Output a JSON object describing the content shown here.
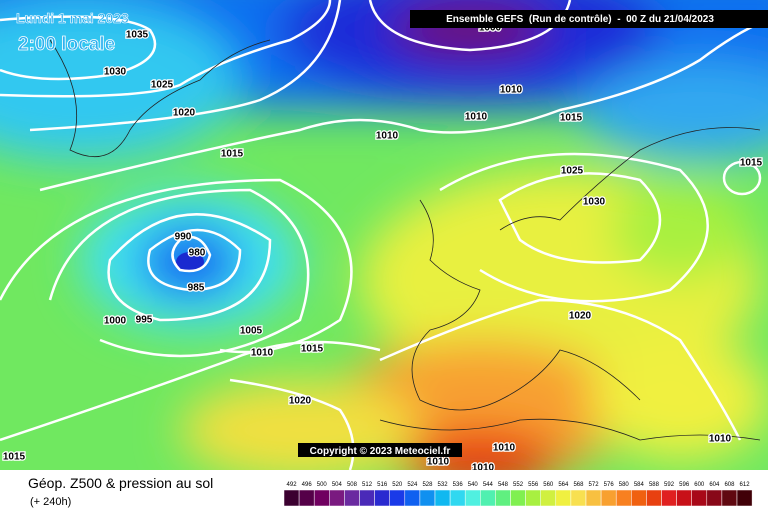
{
  "header": {
    "date": "Lundi 1 mai 2023",
    "time": "2:00 locale",
    "run": "Ensemble GEFS  (Run de contrôle)  -  00 Z du 21/04/2023"
  },
  "copyright": "Copyright © 2023 Meteociel.fr",
  "footer": {
    "title": "Géop. Z500 & pression au sol",
    "lead": "(+ 240h)"
  },
  "colorbar": {
    "values": [
      492,
      496,
      500,
      504,
      508,
      512,
      516,
      520,
      524,
      528,
      532,
      536,
      540,
      544,
      548,
      552,
      556,
      560,
      564,
      568,
      572,
      576,
      580,
      584,
      588,
      592,
      596,
      600,
      604,
      608,
      612
    ],
    "colors": [
      "#3b0030",
      "#550048",
      "#700060",
      "#7a1a80",
      "#6a2aa0",
      "#4a2ab8",
      "#2a2ad0",
      "#1a3ae8",
      "#1060f0",
      "#1090f0",
      "#10b8f0",
      "#30d8f0",
      "#50f0e0",
      "#50f0b0",
      "#60f080",
      "#80f050",
      "#a8f040",
      "#d0f040",
      "#f0f040",
      "#f8e050",
      "#f8c040",
      "#f8a030",
      "#f88020",
      "#f06010",
      "#e84010",
      "#e02020",
      "#c81018",
      "#a80818",
      "#880818",
      "#600810",
      "#400008"
    ]
  },
  "isobars": [
    "1035",
    "1030",
    "1025",
    "1020",
    "1015",
    "1010",
    "1010",
    "1010",
    "1015",
    "1015",
    "1025",
    "1030",
    "990",
    "980",
    "985",
    "1000",
    "995",
    "1005",
    "1010",
    "1015",
    "1020",
    "1020",
    "1010",
    "1010",
    "1010",
    "1010",
    "1015",
    "1000"
  ]
}
